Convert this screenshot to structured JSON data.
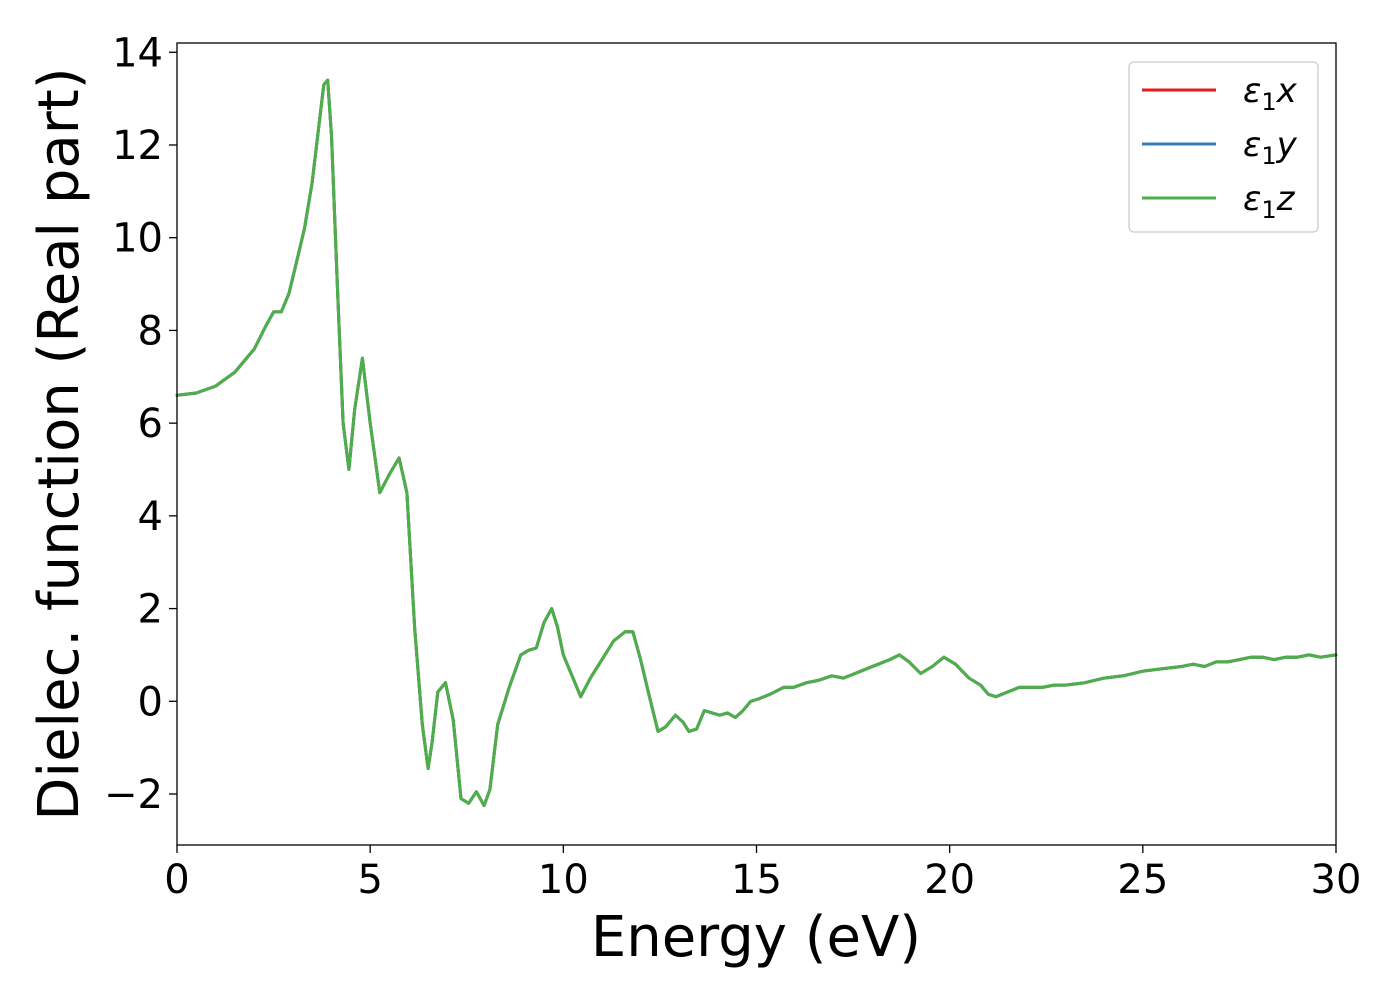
{
  "chart_data": {
    "type": "line",
    "title": "",
    "xlabel": "Energy (eV)",
    "ylabel": "Dielec. function (Real part)",
    "xlim": [
      0,
      30
    ],
    "ylim": [
      -3.1,
      14.2
    ],
    "xticks": [
      0,
      5,
      10,
      15,
      20,
      25,
      30
    ],
    "yticks": [
      -2,
      0,
      2,
      4,
      6,
      8,
      10,
      12,
      14
    ],
    "xtick_labels": [
      "0",
      "5",
      "10",
      "15",
      "20",
      "25",
      "30"
    ],
    "ytick_labels": [
      "−2",
      "0",
      "2",
      "4",
      "6",
      "8",
      "10",
      "12",
      "14"
    ],
    "grid": false,
    "legend_position": "top-right",
    "series": [
      {
        "name": "ε1x",
        "legend_base": "ε",
        "legend_sub": "1",
        "legend_suffix": "x",
        "color": "#e41a1c",
        "x": [
          0,
          0.5,
          1.0,
          1.5,
          2.0,
          2.3,
          2.5,
          2.7,
          2.9,
          3.1,
          3.3,
          3.5,
          3.7,
          3.8,
          3.9,
          4.0,
          4.15,
          4.3,
          4.45,
          4.6,
          4.8,
          5.0,
          5.25,
          5.5,
          5.75,
          5.95,
          6.15,
          6.35,
          6.5,
          6.6,
          6.75,
          6.95,
          7.15,
          7.35,
          7.55,
          7.75,
          7.95,
          8.1,
          8.3,
          8.6,
          8.9,
          9.1,
          9.3,
          9.5,
          9.7,
          9.85,
          10.0,
          10.2,
          10.45,
          10.7,
          11.0,
          11.3,
          11.6,
          11.8,
          12.0,
          12.2,
          12.45,
          12.65,
          12.9,
          13.1,
          13.25,
          13.45,
          13.65,
          13.85,
          14.05,
          14.25,
          14.45,
          14.65,
          14.85,
          15.05,
          15.35,
          15.7,
          15.95,
          16.3,
          16.6,
          16.95,
          17.25,
          17.55,
          17.85,
          18.15,
          18.45,
          18.7,
          18.95,
          19.25,
          19.55,
          19.85,
          20.15,
          20.5,
          20.8,
          21.0,
          21.2,
          21.5,
          21.8,
          22.1,
          22.4,
          22.7,
          23.0,
          23.5,
          24.0,
          24.5,
          25.0,
          25.5,
          26.0,
          26.3,
          26.6,
          26.9,
          27.2,
          27.5,
          27.8,
          28.1,
          28.4,
          28.7,
          29.0,
          29.3,
          29.6,
          30.0
        ],
        "y": [
          6.6,
          6.65,
          6.8,
          7.1,
          7.6,
          8.1,
          8.4,
          8.4,
          8.8,
          9.5,
          10.2,
          11.2,
          12.6,
          13.3,
          13.4,
          12.2,
          9.0,
          6.0,
          5.0,
          6.3,
          7.4,
          6.0,
          4.5,
          4.9,
          5.25,
          4.5,
          1.6,
          -0.5,
          -1.45,
          -0.9,
          0.2,
          0.4,
          -0.4,
          -2.1,
          -2.2,
          -1.95,
          -2.25,
          -1.9,
          -0.5,
          0.3,
          1.0,
          1.1,
          1.15,
          1.7,
          2.0,
          1.6,
          1.0,
          0.6,
          0.1,
          0.5,
          0.9,
          1.3,
          1.5,
          1.5,
          0.9,
          0.2,
          -0.65,
          -0.55,
          -0.3,
          -0.45,
          -0.65,
          -0.6,
          -0.2,
          -0.25,
          -0.3,
          -0.25,
          -0.35,
          -0.2,
          0.0,
          0.05,
          0.15,
          0.3,
          0.3,
          0.4,
          0.45,
          0.55,
          0.5,
          0.6,
          0.7,
          0.8,
          0.9,
          1.0,
          0.85,
          0.6,
          0.75,
          0.95,
          0.8,
          0.5,
          0.35,
          0.15,
          0.1,
          0.2,
          0.3,
          0.3,
          0.3,
          0.35,
          0.35,
          0.4,
          0.5,
          0.55,
          0.65,
          0.7,
          0.75,
          0.8,
          0.75,
          0.85,
          0.85,
          0.9,
          0.95,
          0.95,
          0.9,
          0.95,
          0.95,
          1.0,
          0.95,
          1.0
        ]
      },
      {
        "name": "ε1y",
        "legend_base": "ε",
        "legend_sub": "1",
        "legend_suffix": "y",
        "color": "#377eb8",
        "x": [
          0,
          0.5,
          1.0,
          1.5,
          2.0,
          2.3,
          2.5,
          2.7,
          2.9,
          3.1,
          3.3,
          3.5,
          3.7,
          3.8,
          3.9,
          4.0,
          4.15,
          4.3,
          4.45,
          4.6,
          4.8,
          5.0,
          5.25,
          5.5,
          5.75,
          5.95,
          6.15,
          6.35,
          6.5,
          6.6,
          6.75,
          6.95,
          7.15,
          7.35,
          7.55,
          7.75,
          7.95,
          8.1,
          8.3,
          8.6,
          8.9,
          9.1,
          9.3,
          9.5,
          9.7,
          9.85,
          10.0,
          10.2,
          10.45,
          10.7,
          11.0,
          11.3,
          11.6,
          11.8,
          12.0,
          12.2,
          12.45,
          12.65,
          12.9,
          13.1,
          13.25,
          13.45,
          13.65,
          13.85,
          14.05,
          14.25,
          14.45,
          14.65,
          14.85,
          15.05,
          15.35,
          15.7,
          15.95,
          16.3,
          16.6,
          16.95,
          17.25,
          17.55,
          17.85,
          18.15,
          18.45,
          18.7,
          18.95,
          19.25,
          19.55,
          19.85,
          20.15,
          20.5,
          20.8,
          21.0,
          21.2,
          21.5,
          21.8,
          22.1,
          22.4,
          22.7,
          23.0,
          23.5,
          24.0,
          24.5,
          25.0,
          25.5,
          26.0,
          26.3,
          26.6,
          26.9,
          27.2,
          27.5,
          27.8,
          28.1,
          28.4,
          28.7,
          29.0,
          29.3,
          29.6,
          30.0
        ],
        "y": [
          6.6,
          6.65,
          6.8,
          7.1,
          7.6,
          8.1,
          8.4,
          8.4,
          8.8,
          9.5,
          10.2,
          11.2,
          12.6,
          13.3,
          13.4,
          12.2,
          9.0,
          6.0,
          5.0,
          6.3,
          7.4,
          6.0,
          4.5,
          4.9,
          5.25,
          4.5,
          1.6,
          -0.5,
          -1.45,
          -0.9,
          0.2,
          0.4,
          -0.4,
          -2.1,
          -2.2,
          -1.95,
          -2.25,
          -1.9,
          -0.5,
          0.3,
          1.0,
          1.1,
          1.15,
          1.7,
          2.0,
          1.6,
          1.0,
          0.6,
          0.1,
          0.5,
          0.9,
          1.3,
          1.5,
          1.5,
          0.9,
          0.2,
          -0.65,
          -0.55,
          -0.3,
          -0.45,
          -0.65,
          -0.6,
          -0.2,
          -0.25,
          -0.3,
          -0.25,
          -0.35,
          -0.2,
          0.0,
          0.05,
          0.15,
          0.3,
          0.3,
          0.4,
          0.45,
          0.55,
          0.5,
          0.6,
          0.7,
          0.8,
          0.9,
          1.0,
          0.85,
          0.6,
          0.75,
          0.95,
          0.8,
          0.5,
          0.35,
          0.15,
          0.1,
          0.2,
          0.3,
          0.3,
          0.3,
          0.35,
          0.35,
          0.4,
          0.5,
          0.55,
          0.65,
          0.7,
          0.75,
          0.8,
          0.75,
          0.85,
          0.85,
          0.9,
          0.95,
          0.95,
          0.9,
          0.95,
          0.95,
          1.0,
          0.95,
          1.0
        ]
      },
      {
        "name": "ε1z",
        "legend_base": "ε",
        "legend_sub": "1",
        "legend_suffix": "z",
        "color": "#4daf4a",
        "x": [
          0,
          0.5,
          1.0,
          1.5,
          2.0,
          2.3,
          2.5,
          2.7,
          2.9,
          3.1,
          3.3,
          3.5,
          3.7,
          3.8,
          3.9,
          4.0,
          4.15,
          4.3,
          4.45,
          4.6,
          4.8,
          5.0,
          5.25,
          5.5,
          5.75,
          5.95,
          6.15,
          6.35,
          6.5,
          6.6,
          6.75,
          6.95,
          7.15,
          7.35,
          7.55,
          7.75,
          7.95,
          8.1,
          8.3,
          8.6,
          8.9,
          9.1,
          9.3,
          9.5,
          9.7,
          9.85,
          10.0,
          10.2,
          10.45,
          10.7,
          11.0,
          11.3,
          11.6,
          11.8,
          12.0,
          12.2,
          12.45,
          12.65,
          12.9,
          13.1,
          13.25,
          13.45,
          13.65,
          13.85,
          14.05,
          14.25,
          14.45,
          14.65,
          14.85,
          15.05,
          15.35,
          15.7,
          15.95,
          16.3,
          16.6,
          16.95,
          17.25,
          17.55,
          17.85,
          18.15,
          18.45,
          18.7,
          18.95,
          19.25,
          19.55,
          19.85,
          20.15,
          20.5,
          20.8,
          21.0,
          21.2,
          21.5,
          21.8,
          22.1,
          22.4,
          22.7,
          23.0,
          23.5,
          24.0,
          24.5,
          25.0,
          25.5,
          26.0,
          26.3,
          26.6,
          26.9,
          27.2,
          27.5,
          27.8,
          28.1,
          28.4,
          28.7,
          29.0,
          29.3,
          29.6,
          30.0
        ],
        "y": [
          6.6,
          6.65,
          6.8,
          7.1,
          7.6,
          8.1,
          8.4,
          8.4,
          8.8,
          9.5,
          10.2,
          11.2,
          12.6,
          13.3,
          13.4,
          12.2,
          9.0,
          6.0,
          5.0,
          6.3,
          7.4,
          6.0,
          4.5,
          4.9,
          5.25,
          4.5,
          1.6,
          -0.5,
          -1.45,
          -0.9,
          0.2,
          0.4,
          -0.4,
          -2.1,
          -2.2,
          -1.95,
          -2.25,
          -1.9,
          -0.5,
          0.3,
          1.0,
          1.1,
          1.15,
          1.7,
          2.0,
          1.6,
          1.0,
          0.6,
          0.1,
          0.5,
          0.9,
          1.3,
          1.5,
          1.5,
          0.9,
          0.2,
          -0.65,
          -0.55,
          -0.3,
          -0.45,
          -0.65,
          -0.6,
          -0.2,
          -0.25,
          -0.3,
          -0.25,
          -0.35,
          -0.2,
          0.0,
          0.05,
          0.15,
          0.3,
          0.3,
          0.4,
          0.45,
          0.55,
          0.5,
          0.6,
          0.7,
          0.8,
          0.9,
          1.0,
          0.85,
          0.6,
          0.75,
          0.95,
          0.8,
          0.5,
          0.35,
          0.15,
          0.1,
          0.2,
          0.3,
          0.3,
          0.3,
          0.35,
          0.35,
          0.4,
          0.5,
          0.55,
          0.65,
          0.7,
          0.75,
          0.8,
          0.75,
          0.85,
          0.85,
          0.9,
          0.95,
          0.95,
          0.9,
          0.95,
          0.95,
          1.0,
          0.95,
          1.0
        ]
      }
    ]
  }
}
